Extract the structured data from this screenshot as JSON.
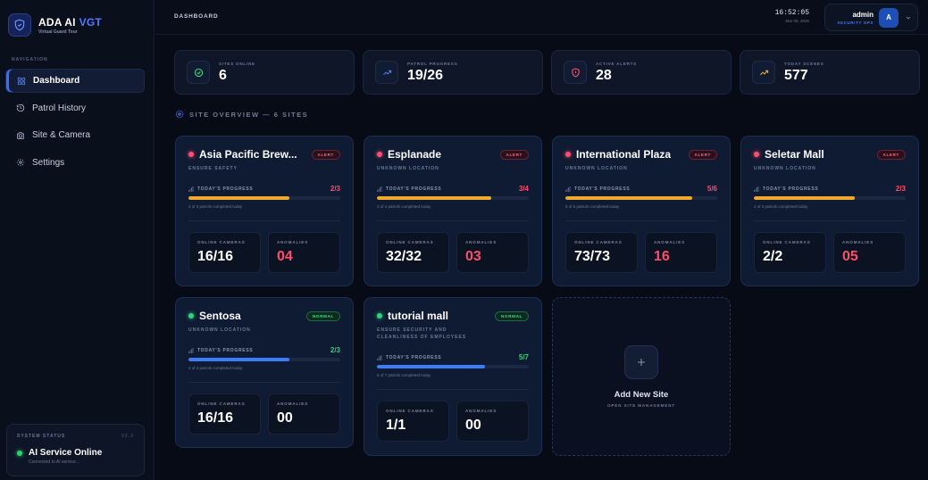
{
  "brand": {
    "name": "ADA AI",
    "accent": "VGT",
    "subtitle": "Virtual Guard Tour"
  },
  "sidebar": {
    "nav_label": "NAVIGATION",
    "items": [
      {
        "label": "Dashboard",
        "icon": "grid-icon",
        "active": true
      },
      {
        "label": "Patrol History",
        "icon": "history-icon",
        "active": false
      },
      {
        "label": "Site & Camera",
        "icon": "camera-icon",
        "active": false
      },
      {
        "label": "Settings",
        "icon": "gear-icon",
        "active": false
      }
    ],
    "status": {
      "label": "SYSTEM STATUS",
      "version": "V2.3",
      "title": "AI Service Online",
      "subtitle": "Connected to AI service..."
    }
  },
  "topbar": {
    "breadcrumb": "DASHBOARD",
    "time": "16:52:05",
    "date": "Mar 08, 2026",
    "user": {
      "name": "admin",
      "role": "SECURITY OPS",
      "initial": "A"
    }
  },
  "stats": [
    {
      "label": "SITES ONLINE",
      "value": "6",
      "icon": "check-circle-icon",
      "color": "#3ddc84"
    },
    {
      "label": "PATROL PROGRESS",
      "value": "19/26",
      "icon": "trending-up-icon",
      "color": "#4f7bff"
    },
    {
      "label": "ACTIVE ALERTS",
      "value": "28",
      "icon": "shield-alert-icon",
      "color": "#ff5c74"
    },
    {
      "label": "TODAY SCENES",
      "value": "577",
      "icon": "trend-icon",
      "color": "#f0b03a"
    }
  ],
  "section_title": "SITE OVERVIEW — 6 SITES",
  "site_labels": {
    "progress": "TODAY'S PROGRESS",
    "cameras": "ONLINE CAMERAS",
    "anomalies": "ANOMALIES"
  },
  "sites": [
    {
      "name": "Asia Pacific Brew...",
      "desc": "ENSURE SAFETY",
      "status": "ALERT",
      "progress": "2/3",
      "progress_fraction": 0.667,
      "note": "2 of 3 patrols completed today",
      "cameras": "16/16",
      "anomalies": "04"
    },
    {
      "name": "Esplanade",
      "desc": "UNKNOWN LOCATION",
      "status": "ALERT",
      "progress": "3/4",
      "progress_fraction": 0.75,
      "note": "3 of 4 patrols completed today",
      "cameras": "32/32",
      "anomalies": "03"
    },
    {
      "name": "International Plaza",
      "desc": "UNKNOWN LOCATION",
      "status": "ALERT",
      "progress": "5/6",
      "progress_fraction": 0.833,
      "note": "5 of 6 patrols completed today",
      "cameras": "73/73",
      "anomalies": "16"
    },
    {
      "name": "Seletar Mall",
      "desc": "UNKNOWN LOCATION",
      "status": "ALERT",
      "progress": "2/3",
      "progress_fraction": 0.667,
      "note": "2 of 3 patrols completed today",
      "cameras": "2/2",
      "anomalies": "05"
    },
    {
      "name": "Sentosa",
      "desc": "UNKNOWN LOCATION",
      "status": "NORMAL",
      "progress": "2/3",
      "progress_fraction": 0.667,
      "note": "2 of 3 patrols completed today",
      "cameras": "16/16",
      "anomalies": "00"
    },
    {
      "name": "tutorial mall",
      "desc": "ENSURE SECURITY AND CLEANLINESS OF EMPLOYEES",
      "status": "NORMAL",
      "progress": "5/7",
      "progress_fraction": 0.714,
      "note": "5 of 7 patrols completed today",
      "cameras": "1/1",
      "anomalies": "00"
    }
  ],
  "add_site": {
    "title": "Add New Site",
    "subtitle": "OPEN SITE MANAGEMENT"
  },
  "colors": {
    "alert": "#ff4d6d",
    "normal": "#31d47a",
    "alert_bar": "#f0a92e",
    "normal_bar": "#3d7bff"
  }
}
